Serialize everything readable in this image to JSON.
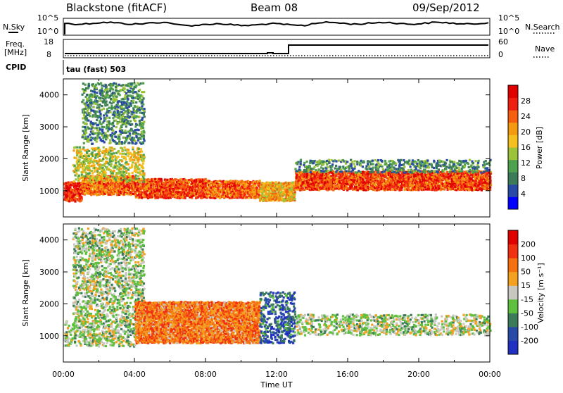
{
  "header": {
    "site": "Blackstone (fitACF)",
    "beam": "Beam 08",
    "date": "09/Sep/2012"
  },
  "top_panels": {
    "nsky_label": "N.Sky",
    "nsky_ticks": [
      "10^5",
      "10^0"
    ],
    "nsearch_label": "N.Search",
    "nsearch_ticks": [
      "10^5",
      "10^0"
    ],
    "freq_label": "Freq.",
    "freq_unit": "[MHz]",
    "freq_ticks": [
      "18",
      "8"
    ],
    "nave_label": "Nave",
    "nave_ticks": [
      "60",
      "0"
    ],
    "cpid_label": "CPID",
    "cpid_value": "tau (fast) 503"
  },
  "chart_data": [
    {
      "type": "heatmap",
      "name": "power-panel",
      "ylabel": "Slant Range [km]",
      "yticks": [
        "1000",
        "2000",
        "3000",
        "4000"
      ],
      "ylim": [
        180,
        4500
      ],
      "xlim": [
        0,
        24
      ],
      "colorbar": {
        "label": "Power [dB]",
        "ticks": [
          "4",
          "8",
          "12",
          "16",
          "20",
          "24",
          "28"
        ],
        "colors": [
          "#0000ff",
          "#2a4aa8",
          "#3c7a5a",
          "#4fa04f",
          "#9cc23a",
          "#f4c020",
          "#f49a10",
          "#f46010",
          "#f02010",
          "#e00000"
        ]
      },
      "bands": [
        {
          "t0": 0.0,
          "t1": 1.0,
          "r0": 700,
          "r1": 1300,
          "level": 0.85
        },
        {
          "t0": 1.0,
          "t1": 4.0,
          "r0": 900,
          "r1": 1500,
          "level": 0.75
        },
        {
          "t0": 4.0,
          "t1": 8.0,
          "r0": 800,
          "r1": 1400,
          "level": 0.8
        },
        {
          "t0": 8.0,
          "t1": 11.0,
          "r0": 800,
          "r1": 1350,
          "level": 0.75
        },
        {
          "t0": 11.0,
          "t1": 13.0,
          "r0": 700,
          "r1": 1300,
          "level": 0.6
        },
        {
          "t0": 13.0,
          "t1": 24.0,
          "r0": 1050,
          "r1": 1650,
          "level": 0.8
        },
        {
          "t0": 0.5,
          "t1": 4.5,
          "r0": 1300,
          "r1": 2400,
          "level": 0.5
        },
        {
          "t0": 1.0,
          "t1": 4.5,
          "r0": 2500,
          "r1": 4400,
          "level": 0.3
        },
        {
          "t0": 13.0,
          "t1": 24.0,
          "r0": 1600,
          "r1": 2000,
          "level": 0.3
        }
      ]
    },
    {
      "type": "heatmap",
      "name": "velocity-panel",
      "ylabel": "Slant Range [km]",
      "yticks": [
        "1000",
        "2000",
        "3000",
        "4000"
      ],
      "ylim": [
        180,
        4500
      ],
      "xlim": [
        0,
        24
      ],
      "xticks": [
        "00:00",
        "04:00",
        "08:00",
        "12:00",
        "16:00",
        "20:00",
        "00:00"
      ],
      "xlabel": "Time UT",
      "colorbar": {
        "label": "Velocity [m s⁻¹]",
        "ticks": [
          "200",
          "100",
          "50",
          "15",
          "-15",
          "-50",
          "-100",
          "-200"
        ],
        "colors": [
          "#2030c0",
          "#2a4aa8",
          "#3c7a5a",
          "#5fc040",
          "#c8c8c0",
          "#f4a020",
          "#f47010",
          "#f03010",
          "#e00000"
        ]
      },
      "bands": [
        {
          "t0": 0.0,
          "t1": 4.0,
          "r0": 700,
          "r1": 1500,
          "level": 0.45
        },
        {
          "t0": 4.0,
          "t1": 11.0,
          "r0": 800,
          "r1": 1500,
          "level": 0.7
        },
        {
          "t0": 11.0,
          "t1": 13.0,
          "r0": 800,
          "r1": 2400,
          "level": 0.2
        },
        {
          "t0": 13.0,
          "t1": 24.0,
          "r0": 1050,
          "r1": 1700,
          "level": 0.45
        },
        {
          "t0": 0.5,
          "t1": 4.5,
          "r0": 1500,
          "r1": 4400,
          "level": 0.45
        },
        {
          "t0": 4.0,
          "t1": 11.0,
          "r0": 1500,
          "r1": 2100,
          "level": 0.7
        }
      ]
    }
  ]
}
